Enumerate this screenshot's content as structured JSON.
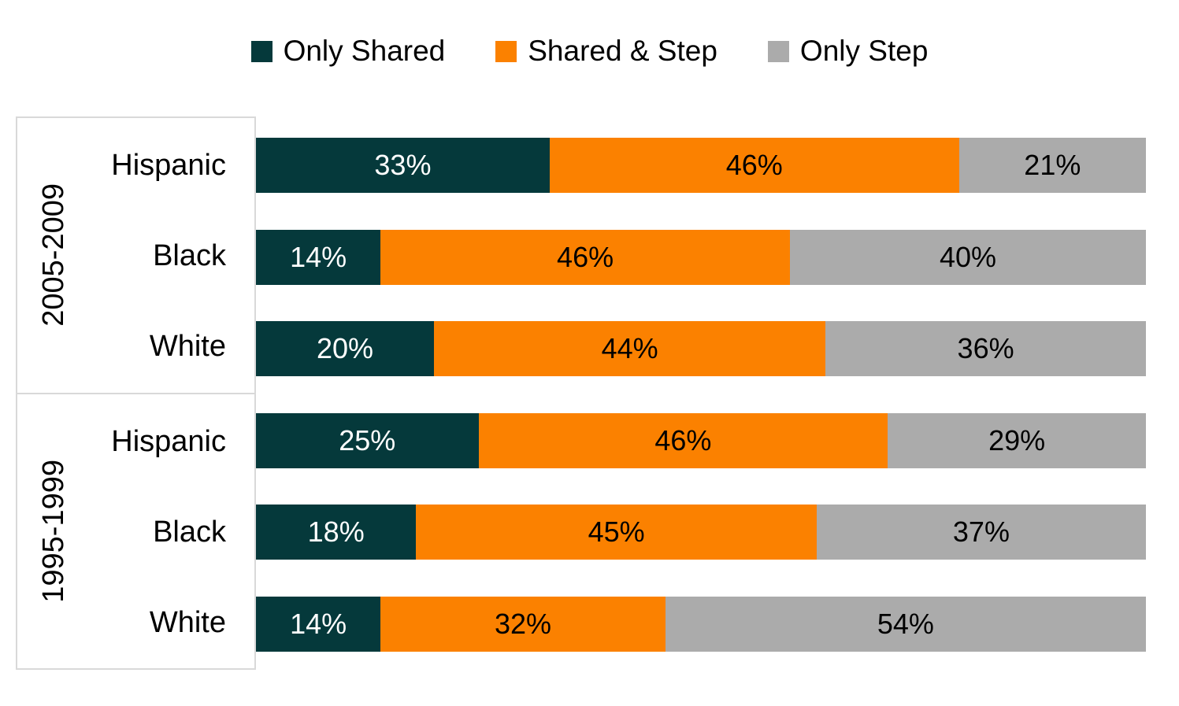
{
  "chart_data": {
    "type": "bar",
    "orientation": "horizontal",
    "stacked": true,
    "unit": "%",
    "xlim": [
      0,
      100
    ],
    "legend_position": "top",
    "grid": false,
    "series": [
      {
        "name": "Only Shared",
        "color": "#05393B"
      },
      {
        "name": "Shared & Step",
        "color": "#FB8100"
      },
      {
        "name": "Only Step",
        "color": "#ABABAB"
      }
    ],
    "value_label_colors": {
      "on_dark": "#FFFFFF",
      "on_light": "#000000"
    },
    "panel_border_color": "#D9D9D9",
    "groups": [
      {
        "label": "2005-2009",
        "rows": [
          {
            "category": "Hispanic",
            "values": [
              33,
              46,
              21
            ],
            "labels": [
              "33%",
              "46%",
              "21%"
            ]
          },
          {
            "category": "Black",
            "values": [
              14,
              46,
              40
            ],
            "labels": [
              "14%",
              "46%",
              "40%"
            ]
          },
          {
            "category": "White",
            "values": [
              20,
              44,
              36
            ],
            "labels": [
              "20%",
              "44%",
              "36%"
            ]
          }
        ]
      },
      {
        "label": "1995-1999",
        "rows": [
          {
            "category": "Hispanic",
            "values": [
              25,
              46,
              29
            ],
            "labels": [
              "25%",
              "46%",
              "29%"
            ]
          },
          {
            "category": "Black",
            "values": [
              18,
              45,
              37
            ],
            "labels": [
              "18%",
              "45%",
              "37%"
            ]
          },
          {
            "category": "White",
            "values": [
              14,
              32,
              54
            ],
            "labels": [
              "14%",
              "32%",
              "54%"
            ]
          }
        ]
      }
    ]
  }
}
